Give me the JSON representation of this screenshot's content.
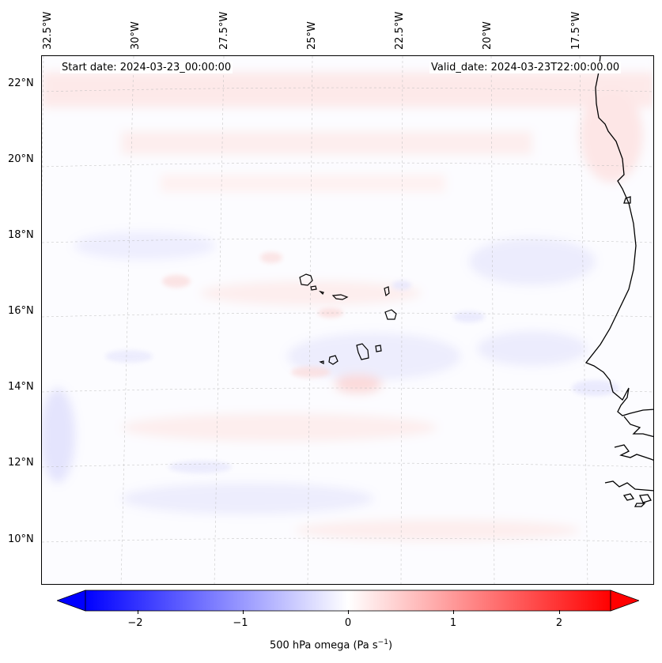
{
  "map": {
    "header": {
      "start_date": "Start date: 2024-03-23_00:00:00",
      "valid_date": "Valid_date: 2024-03-23T22:00:00.00"
    },
    "lon_labels": [
      "32.5°W",
      "30°W",
      "27.5°W",
      "25°W",
      "22.5°W",
      "20°W",
      "17.5°W"
    ],
    "lat_labels": [
      "22°N",
      "20°N",
      "18°N",
      "16°N",
      "14°N",
      "12°N",
      "10°N"
    ],
    "features": [
      "Cape Verde islands",
      "West African coastline"
    ],
    "colors": {
      "negative": "#0000ff",
      "positive": "#ff0000",
      "zero": "#ffffff",
      "coast": "#000000"
    }
  },
  "colorbar": {
    "ticks": [
      "−2",
      "−1",
      "0",
      "1",
      "2"
    ],
    "tick_values": [
      -2,
      -1,
      0,
      1,
      2
    ],
    "range": [
      -2.6,
      2.6
    ],
    "label": "500 hPa omega (Pa s",
    "label_sup": "−1",
    "label_end": ")"
  }
}
